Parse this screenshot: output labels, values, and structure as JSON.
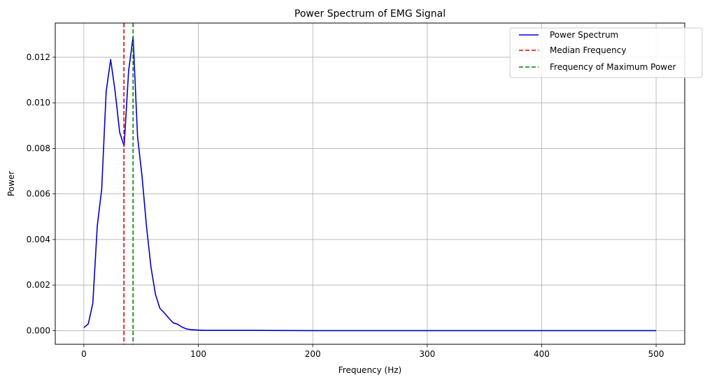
{
  "chart_data": {
    "type": "line",
    "title": "Power Spectrum of EMG Signal",
    "xlabel": "Frequency (Hz)",
    "ylabel": "Power",
    "xlim": [
      -25,
      525
    ],
    "ylim": [
      -0.0006,
      0.0135
    ],
    "xticks": [
      0,
      100,
      200,
      300,
      400,
      500
    ],
    "xtick_labels": [
      "0",
      "100",
      "200",
      "300",
      "400",
      "500"
    ],
    "yticks": [
      0.0,
      0.002,
      0.004,
      0.006,
      0.008,
      0.01,
      0.012
    ],
    "ytick_labels": [
      "0.000",
      "0.002",
      "0.004",
      "0.006",
      "0.008",
      "0.010",
      "0.012"
    ],
    "grid": true,
    "legend_position": "top-right",
    "series": [
      {
        "name": "Power Spectrum",
        "color": "#0000cc",
        "style": "solid",
        "x": [
          0,
          3.9,
          7.8,
          11.7,
          15.6,
          19.5,
          23.4,
          27.3,
          31.3,
          35.2,
          39.1,
          43.0,
          46.9,
          50.8,
          54.7,
          58.6,
          62.5,
          66.4,
          70.3,
          74.2,
          78.1,
          82.0,
          85.9,
          89.8,
          93.8,
          97.7,
          101.6,
          105.5,
          150,
          200,
          250,
          300,
          350,
          400,
          450,
          500
        ],
        "y": [
          0.00013,
          0.0003,
          0.0012,
          0.0046,
          0.0062,
          0.0105,
          0.0119,
          0.0105,
          0.0087,
          0.0081,
          0.0114,
          0.0129,
          0.0085,
          0.0068,
          0.0046,
          0.0028,
          0.0016,
          0.00098,
          0.00078,
          0.00055,
          0.00034,
          0.00028,
          0.00015,
          7e-05,
          4e-05,
          3e-05,
          2e-05,
          1e-05,
          1e-05,
          0.0,
          0.0,
          0.0,
          0.0,
          0.0,
          0.0,
          0.0
        ]
      },
      {
        "name": "Median Frequency",
        "color": "#dd0000",
        "style": "dashed",
        "x_value": 35
      },
      {
        "name": "Frequency of Maximum Power",
        "color": "#008000",
        "style": "dashed",
        "x_value": 43
      }
    ]
  }
}
